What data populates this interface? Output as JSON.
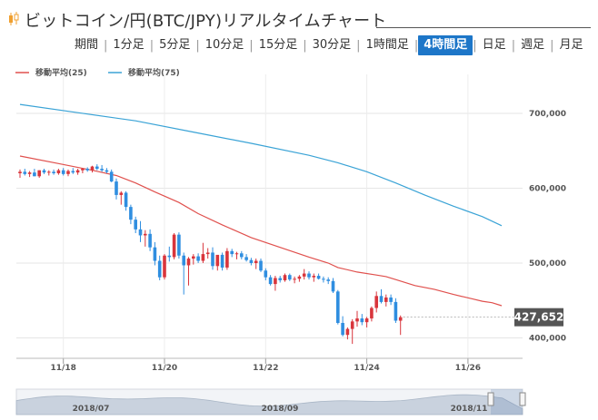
{
  "header": {
    "title": "ビットコイン/円(BTC/JPY)リアルタイムチャート",
    "title_icon": "candlestick-icon"
  },
  "tabs": [
    {
      "label": "期間",
      "active": false
    },
    {
      "label": "1分足",
      "active": false
    },
    {
      "label": "5分足",
      "active": false
    },
    {
      "label": "10分足",
      "active": false
    },
    {
      "label": "15分足",
      "active": false
    },
    {
      "label": "30分足",
      "active": false
    },
    {
      "label": "1時間足",
      "active": false
    },
    {
      "label": "4時間足",
      "active": true
    },
    {
      "label": "日足",
      "active": false
    },
    {
      "label": "週足",
      "active": false
    },
    {
      "label": "月足",
      "active": false
    }
  ],
  "colors": {
    "up": "#d9353c",
    "down": "#2f8ee0",
    "ma25": "#e0504d",
    "ma75": "#3aa3d6",
    "active_tab": "#1d76c8",
    "price_label_bg": "#555555"
  },
  "chart_data": {
    "type": "candlestick",
    "legend": [
      {
        "name": "移動平均(25)",
        "color": "#e0504d"
      },
      {
        "name": "移動平均(75)",
        "color": "#3aa3d6"
      }
    ],
    "legend_position": "top-left",
    "grid": true,
    "y_axis_side": "right",
    "ylim": [
      380000,
      740000
    ],
    "y_ticks": [
      400000,
      500000,
      600000,
      700000
    ],
    "y_tick_labels": [
      "400,000",
      "500,000",
      "600,000",
      "700,000"
    ],
    "x_tick_labels": [
      "11/18",
      "11/20",
      "11/22",
      "11/24",
      "11/26"
    ],
    "x_tick_indices": [
      9,
      30,
      51,
      72,
      93
    ],
    "current_price": 427652,
    "current_price_label": "427,652",
    "candles": [
      [
        620000,
        625000,
        614000,
        622000
      ],
      [
        622000,
        626000,
        617000,
        619000
      ],
      [
        619000,
        623000,
        615000,
        621000
      ],
      [
        621000,
        626000,
        616000,
        616000
      ],
      [
        616000,
        624000,
        614000,
        624000
      ],
      [
        624000,
        626000,
        619000,
        621000
      ],
      [
        621000,
        624000,
        617000,
        622000
      ],
      [
        622000,
        625000,
        618000,
        620000
      ],
      [
        620000,
        626000,
        618000,
        624000
      ],
      [
        624000,
        627000,
        617000,
        619000
      ],
      [
        619000,
        625000,
        616000,
        623000
      ],
      [
        623000,
        627000,
        619000,
        621000
      ],
      [
        621000,
        626000,
        618000,
        624000
      ],
      [
        624000,
        627000,
        620000,
        626000
      ],
      [
        626000,
        628000,
        622000,
        624000
      ],
      [
        624000,
        630000,
        621000,
        629000
      ],
      [
        629000,
        632000,
        624000,
        626000
      ],
      [
        626000,
        631000,
        622000,
        624000
      ],
      [
        624000,
        627000,
        620000,
        622000
      ],
      [
        622000,
        625000,
        608000,
        609000
      ],
      [
        609000,
        613000,
        585000,
        591000
      ],
      [
        591000,
        596000,
        578000,
        594000
      ],
      [
        594000,
        596000,
        570000,
        575000
      ],
      [
        575000,
        578000,
        552000,
        558000
      ],
      [
        558000,
        562000,
        540000,
        545000
      ],
      [
        545000,
        556000,
        528000,
        537000
      ],
      [
        537000,
        544000,
        522000,
        539000
      ],
      [
        539000,
        545000,
        516000,
        521000
      ],
      [
        521000,
        528000,
        497000,
        503000
      ],
      [
        503000,
        510000,
        477000,
        481000
      ],
      [
        481000,
        512000,
        478000,
        510000
      ],
      [
        510000,
        522000,
        502000,
        508000
      ],
      [
        508000,
        540000,
        505000,
        538000
      ],
      [
        538000,
        541000,
        506000,
        510000
      ],
      [
        510000,
        514000,
        458000,
        497000
      ],
      [
        497000,
        508000,
        470000,
        506000
      ],
      [
        506000,
        512000,
        498000,
        509000
      ],
      [
        509000,
        513000,
        500000,
        503000
      ],
      [
        503000,
        527000,
        500000,
        512000
      ],
      [
        512000,
        520000,
        506000,
        514000
      ],
      [
        514000,
        521000,
        491000,
        496000
      ],
      [
        496000,
        508000,
        490000,
        511000
      ],
      [
        511000,
        514000,
        490000,
        494000
      ],
      [
        494000,
        520000,
        491000,
        516000
      ],
      [
        516000,
        519000,
        508000,
        512000
      ],
      [
        512000,
        515000,
        505000,
        513000
      ],
      [
        513000,
        516000,
        505000,
        508000
      ],
      [
        508000,
        512000,
        502000,
        504000
      ],
      [
        504000,
        507000,
        497000,
        500000
      ],
      [
        500000,
        506000,
        492000,
        503000
      ],
      [
        503000,
        506000,
        488000,
        490000
      ],
      [
        490000,
        493000,
        477000,
        481000
      ],
      [
        481000,
        484000,
        470000,
        472000
      ],
      [
        472000,
        483000,
        463000,
        480000
      ],
      [
        480000,
        483000,
        474000,
        477000
      ],
      [
        477000,
        486000,
        475000,
        484000
      ],
      [
        484000,
        486000,
        476000,
        478000
      ],
      [
        478000,
        482000,
        473000,
        479000
      ],
      [
        479000,
        484000,
        475000,
        482000
      ],
      [
        482000,
        492000,
        478000,
        486000
      ],
      [
        486000,
        489000,
        478000,
        481000
      ],
      [
        481000,
        486000,
        475000,
        483000
      ],
      [
        483000,
        486000,
        478000,
        479000
      ],
      [
        479000,
        482000,
        474000,
        478000
      ],
      [
        478000,
        481000,
        472000,
        476000
      ],
      [
        476000,
        480000,
        460000,
        462000
      ],
      [
        462000,
        464000,
        418000,
        420000
      ],
      [
        420000,
        429000,
        402000,
        404000
      ],
      [
        404000,
        414000,
        398000,
        412000
      ],
      [
        412000,
        425000,
        392000,
        422000
      ],
      [
        422000,
        436000,
        415000,
        426000
      ],
      [
        426000,
        432000,
        417000,
        421000
      ],
      [
        421000,
        428000,
        414000,
        426000
      ],
      [
        426000,
        442000,
        422000,
        440000
      ],
      [
        440000,
        462000,
        434000,
        456000
      ],
      [
        456000,
        465000,
        446000,
        448000
      ],
      [
        448000,
        458000,
        442000,
        454000
      ],
      [
        454000,
        458000,
        444000,
        448000
      ],
      [
        448000,
        453000,
        420000,
        423000
      ],
      [
        423000,
        430000,
        404000,
        427652
      ]
    ],
    "ma25": [
      [
        0,
        643000
      ],
      [
        8,
        633000
      ],
      [
        15,
        624000
      ],
      [
        20,
        617000
      ],
      [
        24,
        607000
      ],
      [
        28,
        595000
      ],
      [
        33,
        581000
      ],
      [
        37,
        566000
      ],
      [
        42,
        551000
      ],
      [
        48,
        534000
      ],
      [
        54,
        521000
      ],
      [
        60,
        508000
      ],
      [
        64,
        500000
      ],
      [
        66,
        494000
      ],
      [
        70,
        488000
      ],
      [
        74,
        484000
      ],
      [
        76,
        482000
      ],
      [
        78,
        478000
      ],
      [
        82,
        470000
      ],
      [
        86,
        465000
      ],
      [
        90,
        458000
      ],
      [
        92,
        455000
      ],
      [
        94,
        452000
      ],
      [
        96,
        449000
      ],
      [
        98,
        447000
      ],
      [
        100,
        443000
      ]
    ],
    "ma75": [
      [
        0,
        712000
      ],
      [
        12,
        701000
      ],
      [
        24,
        690000
      ],
      [
        36,
        675000
      ],
      [
        48,
        660000
      ],
      [
        60,
        644000
      ],
      [
        66,
        634000
      ],
      [
        72,
        622000
      ],
      [
        78,
        607000
      ],
      [
        84,
        591000
      ],
      [
        90,
        576000
      ],
      [
        96,
        562000
      ],
      [
        100,
        550000
      ]
    ],
    "navigator": {
      "labels": [
        "2018/07",
        "2018/09",
        "2018/11"
      ]
    }
  }
}
